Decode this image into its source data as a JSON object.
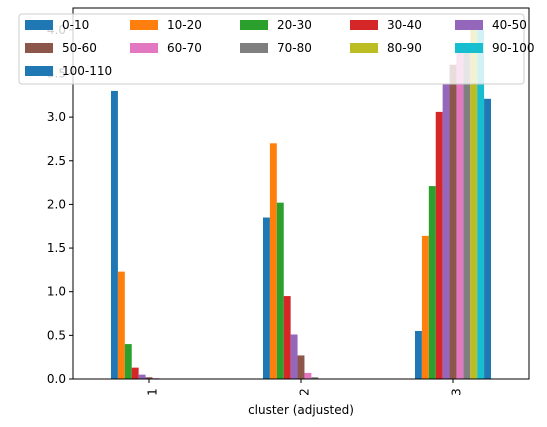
{
  "chart_data": {
    "type": "bar",
    "title": "",
    "xlabel": "cluster (adjusted)",
    "ylabel": "",
    "categories": [
      "1",
      "2",
      "3"
    ],
    "ylim": [
      0,
      4.25
    ],
    "yticks": [
      "0.0",
      "0.5",
      "1.0",
      "1.5",
      "2.0",
      "2.5",
      "3.0",
      "3.5",
      "4.0"
    ],
    "grid": false,
    "legend_position": "top",
    "series": [
      {
        "name": "0-10",
        "color": "#1f77b4",
        "values": [
          3.3,
          1.85,
          0.55
        ]
      },
      {
        "name": "10-20",
        "color": "#ff7f0e",
        "values": [
          1.23,
          2.7,
          1.64
        ]
      },
      {
        "name": "20-30",
        "color": "#2ca02c",
        "values": [
          0.4,
          2.02,
          2.21
        ]
      },
      {
        "name": "30-40",
        "color": "#d62728",
        "values": [
          0.13,
          0.95,
          3.06
        ]
      },
      {
        "name": "40-50",
        "color": "#9467bd",
        "values": [
          0.05,
          0.51,
          3.38
        ]
      },
      {
        "name": "50-60",
        "color": "#8c564b",
        "values": [
          0.02,
          0.27,
          3.6
        ]
      },
      {
        "name": "60-70",
        "color": "#e377c2",
        "values": [
          0.01,
          0.07,
          3.75
        ]
      },
      {
        "name": "70-80",
        "color": "#7f7f7f",
        "values": [
          0.0,
          0.02,
          3.85
        ]
      },
      {
        "name": "80-90",
        "color": "#bcbd22",
        "values": [
          0.0,
          0.0,
          4.05
        ]
      },
      {
        "name": "90-100",
        "color": "#17becf",
        "values": [
          0.0,
          0.0,
          4.0
        ]
      },
      {
        "name": "100-110",
        "color": "#1f77b4",
        "values": [
          0.0,
          0.0,
          3.21
        ]
      }
    ]
  }
}
